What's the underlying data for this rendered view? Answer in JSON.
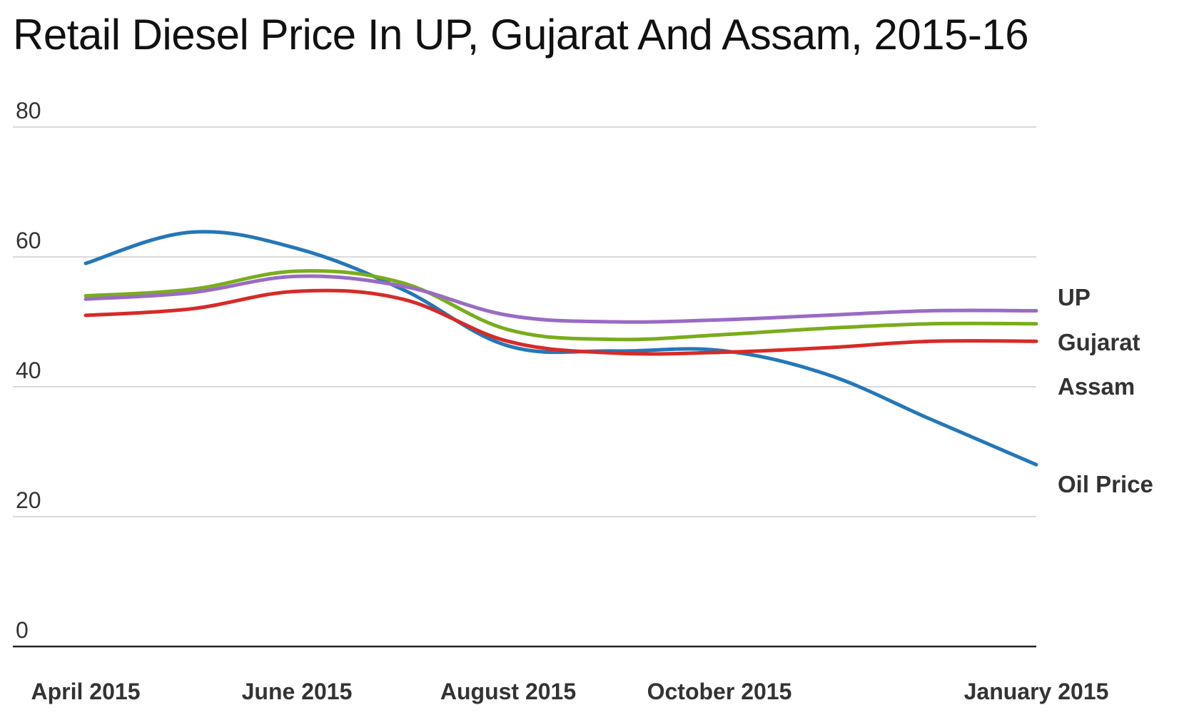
{
  "chart_data": {
    "type": "line",
    "title": "Retail Diesel Price In UP, Gujarat And Assam, 2015-16",
    "xlabel": "",
    "ylabel": "",
    "ylim": [
      0,
      80
    ],
    "yticks": [
      "0",
      "20",
      "40",
      "60",
      "80"
    ],
    "x_tick_labels": [
      "April 2015",
      "June 2015",
      "August 2015",
      "October 2015",
      "January 2015"
    ],
    "x": [
      0,
      1,
      2,
      3,
      4,
      5,
      6,
      7,
      8,
      9
    ],
    "series": [
      {
        "name": "Oil Price",
        "color": "#2577b8",
        "values": [
          59,
          63.8,
          61.3,
          55,
          46.3,
          45.5,
          45.6,
          42,
          35,
          28
        ]
      },
      {
        "name": "Gujarat",
        "color": "#7aac1c",
        "values": [
          54,
          55,
          57.8,
          56,
          48.8,
          47.3,
          48,
          49,
          49.7,
          49.7
        ]
      },
      {
        "name": "UP",
        "color": "#9a6bc4",
        "values": [
          53.5,
          54.5,
          57,
          55.5,
          51,
          50,
          50.3,
          51,
          51.7,
          51.7
        ]
      },
      {
        "name": "Assam",
        "color": "#d62b28",
        "values": [
          51,
          52,
          54.7,
          53.5,
          47,
          45.2,
          45.3,
          46,
          47,
          47
        ]
      }
    ],
    "legend_labels": [
      "UP",
      "Gujarat",
      "Assam",
      "Oil Price"
    ],
    "grid": true,
    "legend": "right"
  }
}
